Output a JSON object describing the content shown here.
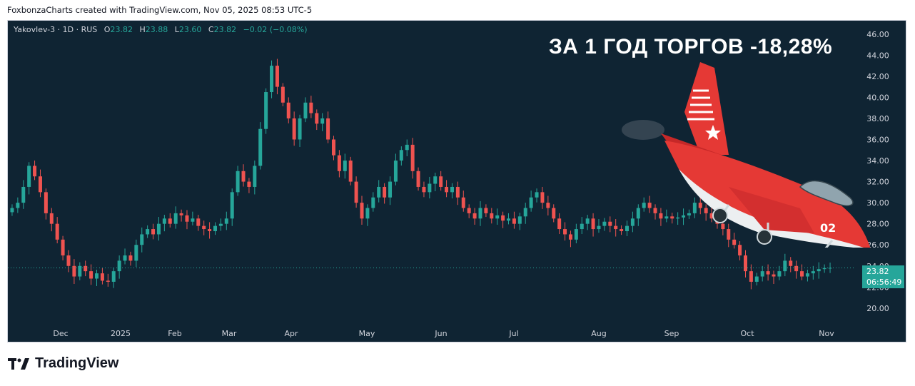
{
  "credit": "FoxbonzaCharts created with TradingView.com, Nov 05, 2025 08:53 UTC-5",
  "legend": {
    "symbol": "Yakovlev-3 · 1D · RUS",
    "o_label": "O",
    "o": "23.82",
    "h_label": "H",
    "h": "23.88",
    "l_label": "L",
    "l": "23.60",
    "c_label": "C",
    "c": "23.82",
    "change": "−0.02 (−0.08%)"
  },
  "headline": "ЗА 1 ГОД ТОРГОВ -18,28%",
  "price_tag": {
    "price": "23.82",
    "countdown": "06:56:49"
  },
  "brand": {
    "name": "TradingView"
  },
  "illustration": {
    "icon": "red-jet-aircraft-icon",
    "tail_number": "02"
  },
  "colors": {
    "up": "#26a69a",
    "down": "#ef5350",
    "background": "#0f2433",
    "text": "#d1d4dc"
  },
  "chart_data": {
    "type": "candlestick",
    "symbol": "Yakovlev-3",
    "interval": "1D",
    "ylim": [
      18.5,
      47
    ],
    "y_ticks": [
      "20.00",
      "22.00",
      "24.00",
      "26.00",
      "28.00",
      "30.00",
      "32.00",
      "34.00",
      "36.00",
      "38.00",
      "40.00",
      "42.00",
      "44.00",
      "46.00"
    ],
    "x_ticks": [
      "Dec",
      "2025",
      "Feb",
      "Mar",
      "Apr",
      "May",
      "Jun",
      "Jul",
      "Aug",
      "Sep",
      "Oct",
      "Nov"
    ],
    "last_price": 23.82,
    "closes": [
      29.5,
      30.0,
      31.5,
      33.5,
      32.5,
      31.0,
      29.0,
      28.0,
      26.5,
      25.0,
      24.0,
      23.0,
      24.0,
      23.5,
      22.8,
      23.3,
      22.6,
      22.5,
      23.5,
      24.5,
      25.0,
      24.5,
      26.0,
      27.0,
      27.5,
      27.0,
      28.0,
      28.5,
      28.0,
      29.0,
      28.8,
      28.2,
      28.5,
      27.8,
      27.5,
      27.3,
      27.8,
      28.0,
      28.5,
      31.0,
      33.0,
      32.0,
      31.5,
      33.5,
      37.0,
      40.5,
      43.0,
      41.0,
      39.5,
      38.0,
      36.0,
      38.0,
      39.5,
      38.5,
      37.5,
      38.0,
      36.0,
      34.5,
      33.0,
      34.0,
      32.0,
      30.0,
      28.5,
      29.5,
      30.5,
      31.5,
      30.5,
      32.0,
      34.0,
      35.0,
      35.5,
      33.0,
      31.5,
      31.0,
      31.8,
      32.5,
      31.5,
      31.0,
      31.5,
      30.5,
      29.5,
      29.0,
      28.5,
      29.5,
      29.0,
      28.5,
      28.8,
      28.3,
      28.5,
      28.0,
      28.7,
      29.5,
      30.5,
      31.0,
      30.0,
      29.5,
      28.5,
      27.5,
      27.0,
      26.5,
      27.5,
      28.0,
      28.5,
      27.5,
      27.8,
      28.2,
      27.8,
      27.5,
      27.3,
      27.8,
      28.5,
      29.5,
      30.0,
      29.5,
      29.0,
      28.5,
      28.7,
      28.5,
      28.6,
      28.8,
      29.0,
      30.0,
      29.5,
      29.0,
      28.5,
      28.0,
      27.5,
      26.5,
      26.0,
      25.0,
      23.5,
      22.5,
      23.0,
      23.5,
      23.2,
      23.0,
      23.5,
      24.5,
      24.0,
      23.5,
      23.0,
      23.3,
      23.5,
      23.7,
      23.8,
      23.82
    ]
  }
}
